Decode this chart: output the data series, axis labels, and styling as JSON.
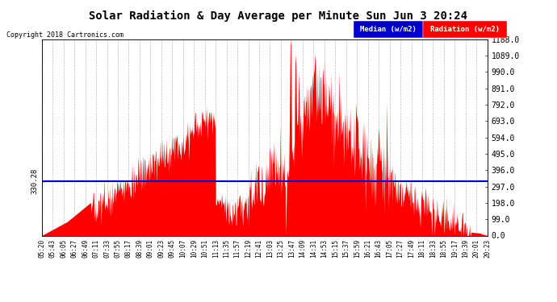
{
  "title": "Solar Radiation & Day Average per Minute Sun Jun 3 20:24",
  "copyright": "Copyright 2018 Cartronics.com",
  "median_value": 330.28,
  "y_max": 1188.0,
  "y_min": 0.0,
  "y_ticks": [
    0.0,
    99.0,
    198.0,
    297.0,
    396.0,
    495.0,
    594.0,
    693.0,
    792.0,
    891.0,
    990.0,
    1089.0,
    1188.0
  ],
  "fill_color": "#FF0000",
  "line_color": "#0000CC",
  "background_color": "#FFFFFF",
  "grid_color": "#AAAAAA",
  "legend_median_bg": "#0000CC",
  "legend_radiation_bg": "#FF0000",
  "x_labels": [
    "05:20",
    "05:43",
    "06:05",
    "06:27",
    "06:49",
    "07:11",
    "07:33",
    "07:55",
    "08:17",
    "08:39",
    "09:01",
    "09:23",
    "09:45",
    "10:07",
    "10:29",
    "10:51",
    "11:13",
    "11:35",
    "11:57",
    "12:19",
    "12:41",
    "13:03",
    "13:25",
    "13:47",
    "14:09",
    "14:31",
    "14:53",
    "15:15",
    "15:37",
    "15:59",
    "16:21",
    "16:43",
    "17:05",
    "17:27",
    "17:49",
    "18:11",
    "18:33",
    "18:55",
    "19:17",
    "19:39",
    "20:01",
    "20:23"
  ]
}
